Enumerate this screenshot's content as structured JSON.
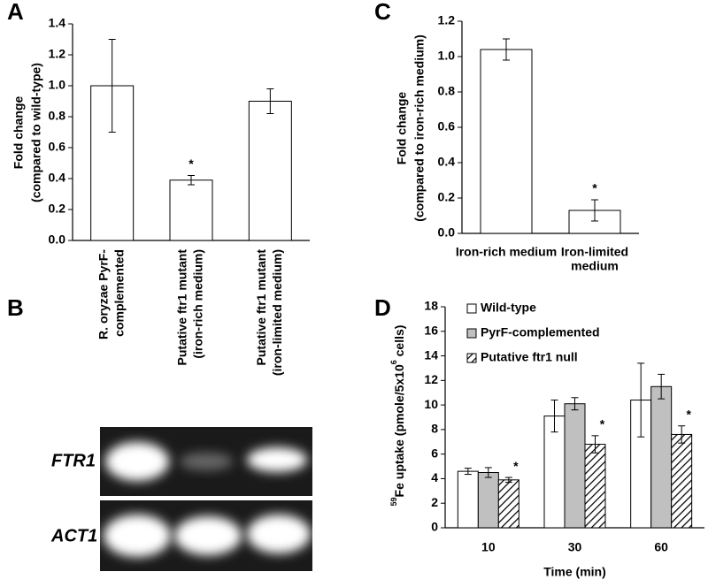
{
  "chart_data": [
    {
      "type": "bar",
      "panel": "A",
      "ylabel": [
        "Fold change",
        "(compared to wild-type)"
      ],
      "categories": [
        [
          "R. oryzae PyrF-",
          "complemented"
        ],
        [
          "Putative ftr1 mutant",
          "(iron-rich medium)"
        ],
        [
          "Putative ftr1 mutant",
          "(iron-limited medium)"
        ]
      ],
      "values": [
        1.0,
        0.39,
        0.9
      ],
      "errors": [
        0.3,
        0.03,
        0.08
      ],
      "color": "#ffffff",
      "ylim": [
        0,
        1.4
      ],
      "yticks": [
        {
          "value": 0,
          "label": "0.0"
        },
        0.2,
        0.4,
        0.6,
        0.8,
        {
          "value": 1,
          "label": "1.0"
        },
        1.2,
        1.4
      ],
      "annotations": [
        {
          "text": "*",
          "index": 1
        }
      ]
    },
    {
      "type": "bar",
      "panel": "C",
      "ylabel": [
        "Fold change",
        "(compared to iron-rich medium)"
      ],
      "categories": [
        [
          "Iron-rich medium"
        ],
        [
          "Iron-limited",
          "medium"
        ]
      ],
      "values": [
        1.04,
        0.13
      ],
      "errors": [
        0.06,
        0.06
      ],
      "color": "#ffffff",
      "ylim": [
        0,
        1.2
      ],
      "yticks": [
        {
          "value": 0,
          "label": "0.0"
        },
        0.2,
        0.4,
        0.6,
        0.8,
        {
          "value": 1,
          "label": "1.0"
        },
        1.2
      ],
      "annotations": [
        {
          "text": "*",
          "index": 1
        }
      ]
    },
    {
      "type": "bar",
      "panel": "D",
      "ylabel": [
        "59",
        "Fe uptake (pmole/5x10",
        "6",
        " cells)"
      ],
      "xlabel": "Time (min)",
      "categories": [
        "10",
        "30",
        "60"
      ],
      "series": [
        {
          "name": "Wild-type",
          "color": "#ffffff",
          "values": [
            4.6,
            9.1,
            10.4
          ],
          "errors": [
            0.25,
            1.3,
            3.0
          ]
        },
        {
          "name": "PyrF-complemented",
          "color": "#c0c0c0",
          "values": [
            4.5,
            10.1,
            11.5
          ],
          "errors": [
            0.4,
            0.5,
            1.0
          ]
        },
        {
          "name": "Putative ftr1 null",
          "color": "#ffffff",
          "hatch": true,
          "values": [
            3.9,
            6.8,
            7.6
          ],
          "errors": [
            0.2,
            0.7,
            0.7
          ]
        }
      ],
      "ylim": [
        0,
        18
      ],
      "yticks": [
        0,
        2,
        4,
        6,
        8,
        10,
        12,
        14,
        16,
        18
      ],
      "annotations": [
        {
          "text": "*",
          "series": 2,
          "index": 0
        },
        {
          "text": "*",
          "series": 2,
          "index": 1
        },
        {
          "text": "*",
          "series": 2,
          "index": 2
        }
      ]
    }
  ],
  "gel": {
    "panel": "B",
    "rows": [
      "FTR1",
      "ACT1"
    ]
  }
}
